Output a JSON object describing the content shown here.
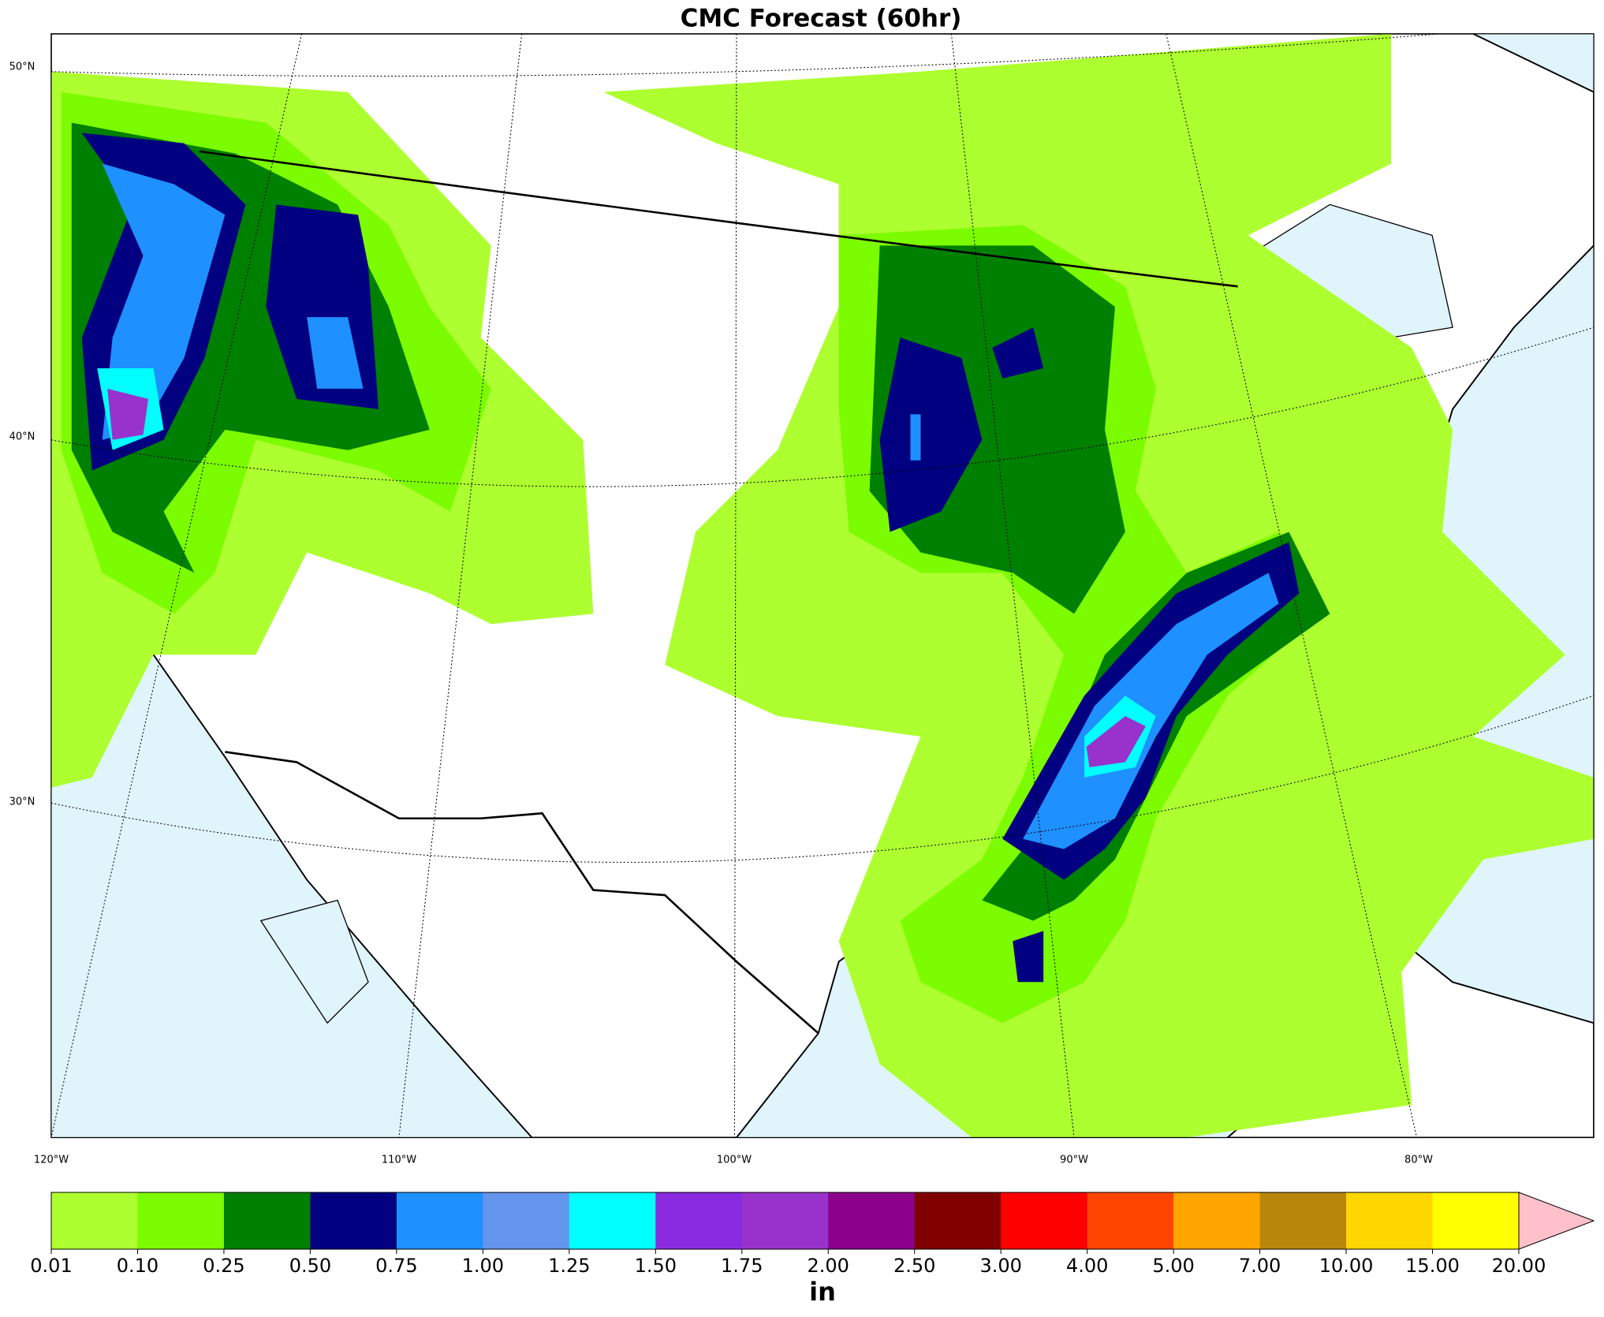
{
  "title": "CMC Forecast (60hr)",
  "map": {
    "lat_labels": [
      "50°N",
      "40°N",
      "30°N"
    ],
    "lon_labels": [
      "120°W",
      "110°W",
      "100°W",
      "90°W",
      "80°W"
    ]
  },
  "colorbar": {
    "label": "in",
    "ticks": [
      {
        "value": 0.01,
        "label": "0.01"
      },
      {
        "value": 0.1,
        "label": "0.10"
      },
      {
        "value": 0.25,
        "label": "0.25"
      },
      {
        "value": 0.5,
        "label": "0.50"
      },
      {
        "value": 0.75,
        "label": "0.75"
      },
      {
        "value": 1,
        "label": "1.00"
      },
      {
        "value": 1.25,
        "label": "1.25"
      },
      {
        "value": 1.5,
        "label": "1.50"
      },
      {
        "value": 1.75,
        "label": "1.75"
      },
      {
        "value": 2,
        "label": "2.00"
      },
      {
        "value": 2.5,
        "label": "2.50"
      },
      {
        "value": 3,
        "label": "3.00"
      },
      {
        "value": 4,
        "label": "4.00"
      },
      {
        "value": 5,
        "label": "5.00"
      },
      {
        "value": 7,
        "label": "7.00"
      },
      {
        "value": 10,
        "label": "10.00"
      },
      {
        "value": 15,
        "label": "15.00"
      },
      {
        "value": 20,
        "label": "20.00"
      }
    ],
    "colors": [
      "#adff2f",
      "#7cfc00",
      "#008000",
      "#000080",
      "#1e90ff",
      "#6495ed",
      "#00ffff",
      "#8a2be2",
      "#9932cc",
      "#8b008b",
      "#800000",
      "#ff0000",
      "#ff4500",
      "#ffa500",
      "#b8860b",
      "#ffd700",
      "#ffff00"
    ],
    "extend_color": "#ffc0cb"
  }
}
